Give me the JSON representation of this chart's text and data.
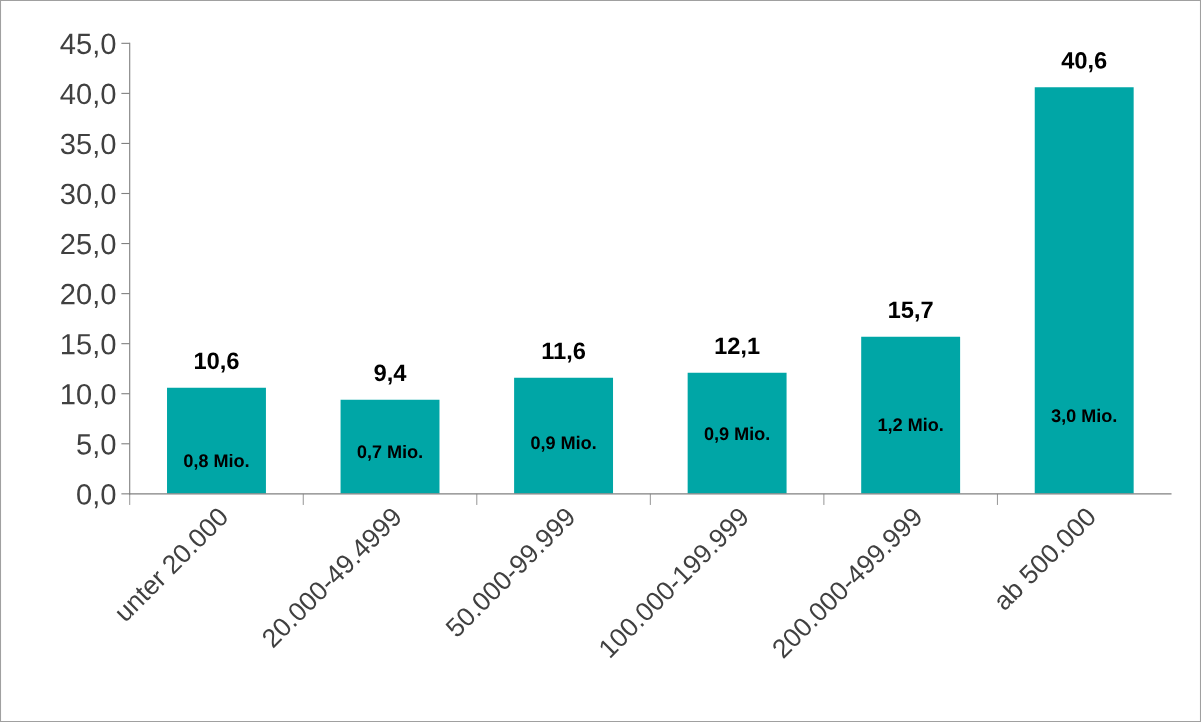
{
  "chart_data": {
    "type": "bar",
    "categories": [
      "unter 20.000",
      "20.000-49.4999",
      "50.000-99.999",
      "100.000-199.999",
      "200.000-499.999",
      "ab 500.000"
    ],
    "values": [
      10.6,
      9.4,
      11.6,
      12.1,
      15.7,
      40.6
    ],
    "value_labels": [
      "10,6",
      "9,4",
      "11,6",
      "12,1",
      "15,7",
      "40,6"
    ],
    "color": "#00a6a6",
    "ylim": [
      0,
      45
    ],
    "yticks": [
      {
        "value": 0,
        "label": "0,0"
      },
      {
        "value": 5,
        "label": "5,0"
      },
      {
        "value": 10,
        "label": "10,0"
      },
      {
        "value": 15,
        "label": "15,0"
      },
      {
        "value": 20,
        "label": "20,0"
      },
      {
        "value": 25,
        "label": "25,0"
      },
      {
        "value": 30,
        "label": "30,0"
      },
      {
        "value": 35,
        "label": "35,0"
      },
      {
        "value": 40,
        "label": "40,0"
      },
      {
        "value": 45,
        "label": "45,0"
      }
    ],
    "grid": false,
    "legend": false,
    "annotations": [
      "0,8 Mio.",
      "0,7 Mio.",
      "0,9 Mio.",
      "0,9 Mio.",
      "1,2 Mio.",
      "3,0 Mio."
    ]
  }
}
